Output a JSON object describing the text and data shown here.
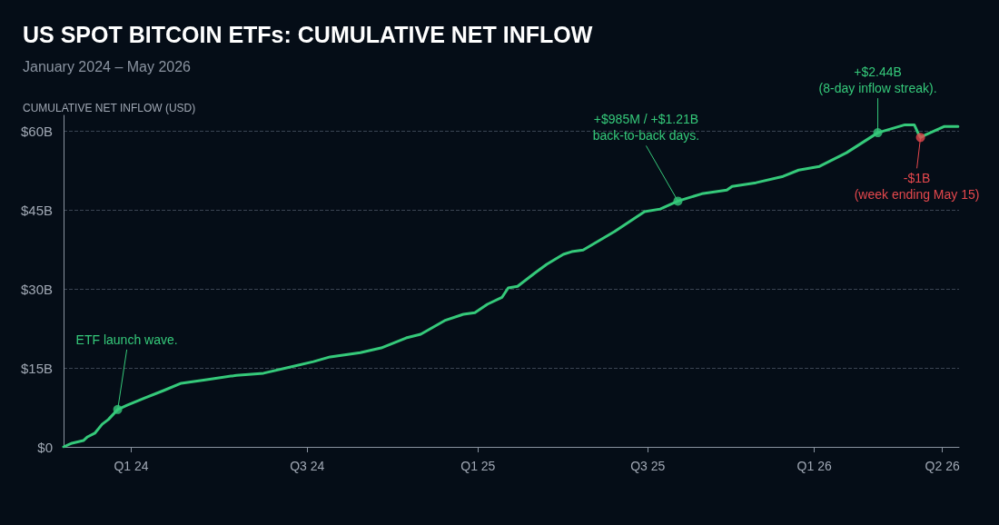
{
  "chart_data": {
    "type": "line",
    "title": "US SPOT BITCOIN ETFs: CUMULATIVE NET INFLOW",
    "subtitle": "January 2024 – May 2026",
    "ylabel": "CUMULATIVE NET INFLOW (USD)",
    "x": [
      "2024-01-11",
      "2024-01-19",
      "2024-01-30",
      "2024-02-03",
      "2024-02-10",
      "2024-02-17",
      "2024-02-23",
      "2024-03-03",
      "2024-03-12",
      "2024-03-29",
      "2024-04-16",
      "2024-05-03",
      "2024-05-29",
      "2024-06-25",
      "2024-07-21",
      "2024-08-16",
      "2024-09-07",
      "2024-09-23",
      "2024-10-22",
      "2024-11-11",
      "2024-12-05",
      "2024-12-19",
      "2025-01-11",
      "2025-01-29",
      "2025-02-09",
      "2025-02-21",
      "2025-03-07",
      "2025-03-13",
      "2025-03-22",
      "2025-04-08",
      "2025-04-19",
      "2025-05-05",
      "2025-05-13",
      "2025-05-24",
      "2025-06-23",
      "2025-07-22",
      "2025-08-06",
      "2025-08-23",
      "2025-09-15",
      "2025-10-09",
      "2025-10-14",
      "2025-11-06",
      "2025-12-02",
      "2025-12-17",
      "2026-01-06",
      "2026-02-01",
      "2026-03-03",
      "2026-03-29",
      "2026-04-07",
      "2026-04-11",
      "2026-04-13",
      "2026-04-18",
      "2026-05-06",
      "2026-05-19"
    ],
    "series": [
      {
        "color": "#35c97a",
        "values": [
          0,
          0.7,
          1.2,
          1.9,
          2.6,
          4.3,
          5.2,
          7.1,
          7.9,
          9.3,
          10.7,
          12.1,
          12.8,
          13.6,
          14.0,
          15.2,
          16.2,
          17.1,
          17.9,
          18.8,
          20.7,
          21.4,
          24.0,
          25.2,
          25.5,
          27.1,
          28.4,
          30.2,
          30.5,
          33.1,
          34.7,
          36.6,
          37.1,
          37.4,
          40.9,
          44.7,
          45.2,
          46.7,
          48.1,
          48.8,
          49.5,
          50.2,
          51.4,
          52.6,
          53.3,
          55.9,
          59.7,
          61.2,
          61.2,
          59.5,
          58.8,
          59.3,
          60.9,
          60.9
        ]
      }
    ],
    "xlim": [
      "2024-01-11",
      "2026-05-20"
    ],
    "xticks": [
      {
        "value": "2024-03-16",
        "label": "Q1 24"
      },
      {
        "value": "2024-09-01",
        "label": "Q3 24"
      },
      {
        "value": "2025-02-12",
        "label": "Q1 25"
      },
      {
        "value": "2025-07-25",
        "label": "Q3 25"
      },
      {
        "value": "2026-01-01",
        "label": "Q1 26"
      },
      {
        "value": "2026-05-04",
        "label": "Q2 26"
      }
    ],
    "ylim": [
      0,
      63
    ],
    "yticks": [
      {
        "value": 0,
        "label": "$0"
      },
      {
        "value": 15,
        "label": "$15B"
      },
      {
        "value": 30,
        "label": "$30B"
      },
      {
        "value": 45,
        "label": "$45B"
      },
      {
        "value": 60,
        "label": "$60B"
      }
    ],
    "grid": "y",
    "marker": "none",
    "line_style": "solid",
    "annotations": [
      {
        "text": "ETF launch wave.",
        "x": "2024-03-03",
        "y": 7.1
      },
      {
        "text": "+$985M / +$1.21B\nback-to-back days.",
        "x": "2025-08-23",
        "y": 46.7
      },
      {
        "text": "+$2.44B\n(8-day inflow streak).",
        "x": "2026-03-03",
        "y": 59.7
      },
      {
        "text": "-$1B\n(week ending May 15)",
        "x": "2026-04-13",
        "y": 58.8
      }
    ]
  }
}
